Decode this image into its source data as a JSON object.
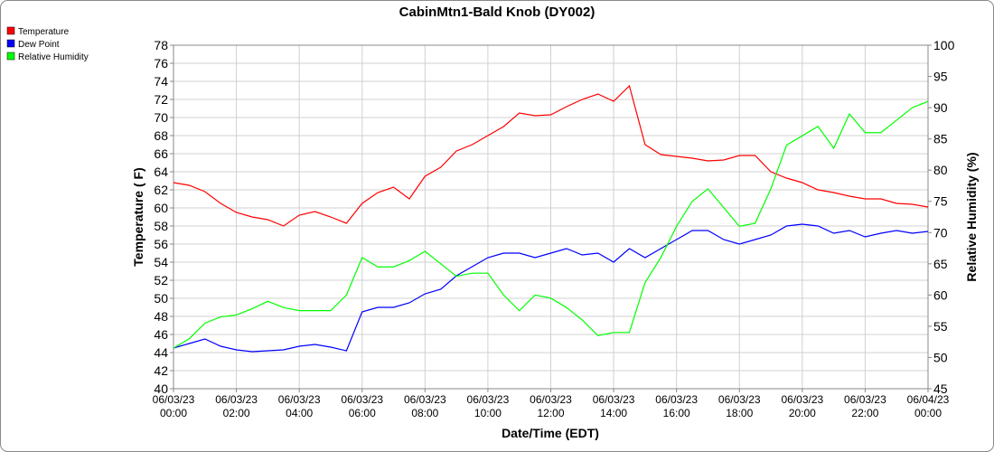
{
  "chart_data": {
    "type": "line",
    "title": "CabinMtn1-Bald Knob (DY002)",
    "x_label": "Date/Time (EDT)",
    "y_label": "Temperature ( F)",
    "y2_label": "Relative Humidity (%)",
    "grid": true,
    "legend": "top-left",
    "x": [
      0,
      0.5,
      1,
      1.5,
      2,
      2.5,
      3,
      3.5,
      4,
      4.5,
      5,
      5.5,
      6,
      6.5,
      7,
      7.5,
      8,
      8.5,
      9,
      9.5,
      10,
      10.5,
      11,
      11.5,
      12,
      12.5,
      13,
      13.5,
      14,
      14.5,
      15,
      15.5,
      16,
      16.5,
      17,
      17.5,
      18,
      18.5,
      19,
      19.5,
      20,
      20.5,
      21,
      21.5,
      22,
      22.5,
      23,
      23.5,
      24
    ],
    "xlim": [
      0,
      24
    ],
    "xticks": [
      {
        "value": 0,
        "label": [
          "06/03/23",
          "00:00"
        ]
      },
      {
        "value": 2,
        "label": [
          "06/03/23",
          "02:00"
        ]
      },
      {
        "value": 4,
        "label": [
          "06/03/23",
          "04:00"
        ]
      },
      {
        "value": 6,
        "label": [
          "06/03/23",
          "06:00"
        ]
      },
      {
        "value": 8,
        "label": [
          "06/03/23",
          "08:00"
        ]
      },
      {
        "value": 10,
        "label": [
          "06/03/23",
          "10:00"
        ]
      },
      {
        "value": 12,
        "label": [
          "06/03/23",
          "12:00"
        ]
      },
      {
        "value": 14,
        "label": [
          "06/03/23",
          "14:00"
        ]
      },
      {
        "value": 16,
        "label": [
          "06/03/23",
          "16:00"
        ]
      },
      {
        "value": 18,
        "label": [
          "06/03/23",
          "18:00"
        ]
      },
      {
        "value": 20,
        "label": [
          "06/03/23",
          "20:00"
        ]
      },
      {
        "value": 22,
        "label": [
          "06/03/23",
          "22:00"
        ]
      },
      {
        "value": 24,
        "label": [
          "06/04/23",
          "00:00"
        ]
      }
    ],
    "ylim": [
      40,
      78
    ],
    "yticks": [
      40,
      42,
      44,
      46,
      48,
      50,
      52,
      54,
      56,
      58,
      60,
      62,
      64,
      66,
      68,
      70,
      72,
      74,
      76,
      78
    ],
    "y2lim": [
      45,
      100
    ],
    "y2ticks": [
      45,
      50,
      55,
      60,
      65,
      70,
      75,
      80,
      85,
      90,
      95,
      100
    ],
    "series": [
      {
        "name": "Temperature",
        "color": "#ff0000",
        "values": [
          62.8,
          62.5,
          61.8,
          60.5,
          59.5,
          59.0,
          58.7,
          58.0,
          59.2,
          59.6,
          59.0,
          58.3,
          60.5,
          61.7,
          62.3,
          61.0,
          63.5,
          64.5,
          66.3,
          67.0,
          68.0,
          69.0,
          70.5,
          70.2,
          70.3,
          71.2,
          72.0,
          72.6,
          71.8,
          73.5,
          67.0,
          65.9,
          65.7,
          65.5,
          65.2,
          65.3,
          65.8,
          65.8,
          64.0,
          63.3,
          62.8,
          62.0,
          61.7,
          61.3,
          61.0,
          61.0,
          60.5,
          60.4,
          60.1
        ]
      },
      {
        "name": "Dew Point",
        "color": "#0000ff",
        "values": [
          44.5,
          45.0,
          45.5,
          44.7,
          44.3,
          44.1,
          44.2,
          44.3,
          44.7,
          44.9,
          44.6,
          44.2,
          48.5,
          49.0,
          49.0,
          49.5,
          50.5,
          51.0,
          52.5,
          53.5,
          54.5,
          55.0,
          55.0,
          54.5,
          55.0,
          55.5,
          54.8,
          55.0,
          54.0,
          55.5,
          54.5,
          55.5,
          56.5,
          57.5,
          57.5,
          56.5,
          56.0,
          56.5,
          57.0,
          58.0,
          58.2,
          58.0,
          57.2,
          57.5,
          56.8,
          57.2,
          57.5,
          57.2,
          57.4
        ]
      },
      {
        "name": "Relative Humidity",
        "color": "#00ff00",
        "axis": "y2",
        "values": [
          51.5,
          53,
          55.5,
          56.5,
          56.8,
          57.8,
          59,
          58,
          57.5,
          57.5,
          57.5,
          60,
          66,
          64.5,
          64.5,
          65.5,
          67,
          65,
          63,
          63.5,
          63.5,
          60,
          57.5,
          60,
          59.5,
          58,
          56,
          53.5,
          54,
          54,
          62,
          66,
          71,
          75,
          77,
          74,
          71,
          71.5,
          77,
          84,
          85.5,
          87,
          83.5,
          89,
          86,
          86,
          88,
          90,
          91
        ]
      }
    ]
  }
}
